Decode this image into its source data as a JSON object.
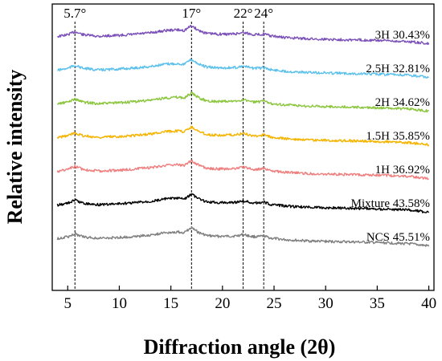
{
  "chart_data": {
    "type": "line",
    "title": "",
    "xlabel": "Diffraction angle (2θ)",
    "ylabel": "Relative intensity",
    "xlim": [
      3.5,
      40.5
    ],
    "xticks": [
      5,
      10,
      15,
      20,
      25,
      30,
      35,
      40
    ],
    "y_ticks_shown": false,
    "grid": false,
    "ref_lines": [
      {
        "x": 5.7,
        "label": "5.7°"
      },
      {
        "x": 17,
        "label": "17°"
      },
      {
        "x": 22,
        "label": "22°"
      },
      {
        "x": 24,
        "label": "24°"
      }
    ],
    "x": [
      4,
      5,
      5.7,
      6.5,
      8,
      10,
      11,
      13,
      14.5,
      15.5,
      16.3,
      17,
      17.7,
      18.5,
      19.5,
      20.5,
      21.3,
      22,
      22.8,
      23.5,
      24,
      24.7,
      26,
      28,
      30,
      34,
      36,
      38,
      40
    ],
    "series": [
      {
        "name": "3H  30.43%",
        "color": "#7b50b8",
        "values": [
          0.3,
          0.45,
          0.7,
          0.45,
          0.32,
          0.4,
          0.45,
          0.6,
          0.8,
          0.85,
          0.8,
          1.2,
          0.8,
          0.55,
          0.5,
          0.5,
          0.52,
          0.65,
          0.48,
          0.46,
          0.52,
          0.34,
          0.22,
          0.12,
          0.07,
          0.0,
          -0.05,
          -0.12,
          -0.3
        ]
      },
      {
        "name": "2.5H  32.81%",
        "color": "#5bc0eb",
        "values": [
          0.3,
          0.45,
          0.7,
          0.45,
          0.32,
          0.4,
          0.45,
          0.6,
          0.8,
          0.85,
          0.8,
          1.2,
          0.8,
          0.55,
          0.5,
          0.5,
          0.52,
          0.65,
          0.48,
          0.46,
          0.52,
          0.34,
          0.22,
          0.12,
          0.07,
          0.0,
          -0.05,
          -0.12,
          -0.3
        ]
      },
      {
        "name": "2H  34.62%",
        "color": "#8cc63f",
        "values": [
          0.3,
          0.45,
          0.7,
          0.45,
          0.32,
          0.4,
          0.45,
          0.6,
          0.8,
          0.85,
          0.8,
          1.2,
          0.8,
          0.55,
          0.5,
          0.5,
          0.52,
          0.65,
          0.48,
          0.46,
          0.52,
          0.34,
          0.22,
          0.12,
          0.07,
          0.0,
          -0.05,
          -0.12,
          -0.3
        ]
      },
      {
        "name": "1.5H  35.85%",
        "color": "#f5b400",
        "values": [
          0.3,
          0.45,
          0.7,
          0.45,
          0.32,
          0.4,
          0.45,
          0.6,
          0.8,
          0.85,
          0.8,
          1.2,
          0.8,
          0.55,
          0.5,
          0.5,
          0.52,
          0.65,
          0.48,
          0.46,
          0.52,
          0.34,
          0.22,
          0.12,
          0.07,
          0.0,
          -0.05,
          -0.12,
          -0.3
        ]
      },
      {
        "name": "1H  36.92%",
        "color": "#ef7f7f",
        "values": [
          0.3,
          0.45,
          0.7,
          0.45,
          0.32,
          0.4,
          0.45,
          0.6,
          0.8,
          0.85,
          0.8,
          1.2,
          0.8,
          0.55,
          0.5,
          0.5,
          0.52,
          0.65,
          0.48,
          0.46,
          0.52,
          0.34,
          0.22,
          0.12,
          0.07,
          0.0,
          -0.05,
          -0.12,
          -0.3
        ]
      },
      {
        "name": "Mixture 43.58%",
        "color": "#000000",
        "values": [
          0.3,
          0.45,
          0.7,
          0.45,
          0.32,
          0.4,
          0.45,
          0.6,
          0.8,
          0.85,
          0.8,
          1.2,
          0.8,
          0.55,
          0.5,
          0.5,
          0.52,
          0.65,
          0.48,
          0.46,
          0.52,
          0.34,
          0.22,
          0.12,
          0.07,
          0.0,
          -0.05,
          -0.12,
          -0.3
        ]
      },
      {
        "name": "NCS 45.51%",
        "color": "#808080",
        "values": [
          0.3,
          0.45,
          0.7,
          0.45,
          0.32,
          0.4,
          0.45,
          0.6,
          0.8,
          0.85,
          0.8,
          1.2,
          0.8,
          0.55,
          0.5,
          0.5,
          0.52,
          0.65,
          0.48,
          0.46,
          0.52,
          0.34,
          0.22,
          0.12,
          0.07,
          0.0,
          -0.05,
          -0.12,
          -0.3
        ]
      }
    ]
  }
}
